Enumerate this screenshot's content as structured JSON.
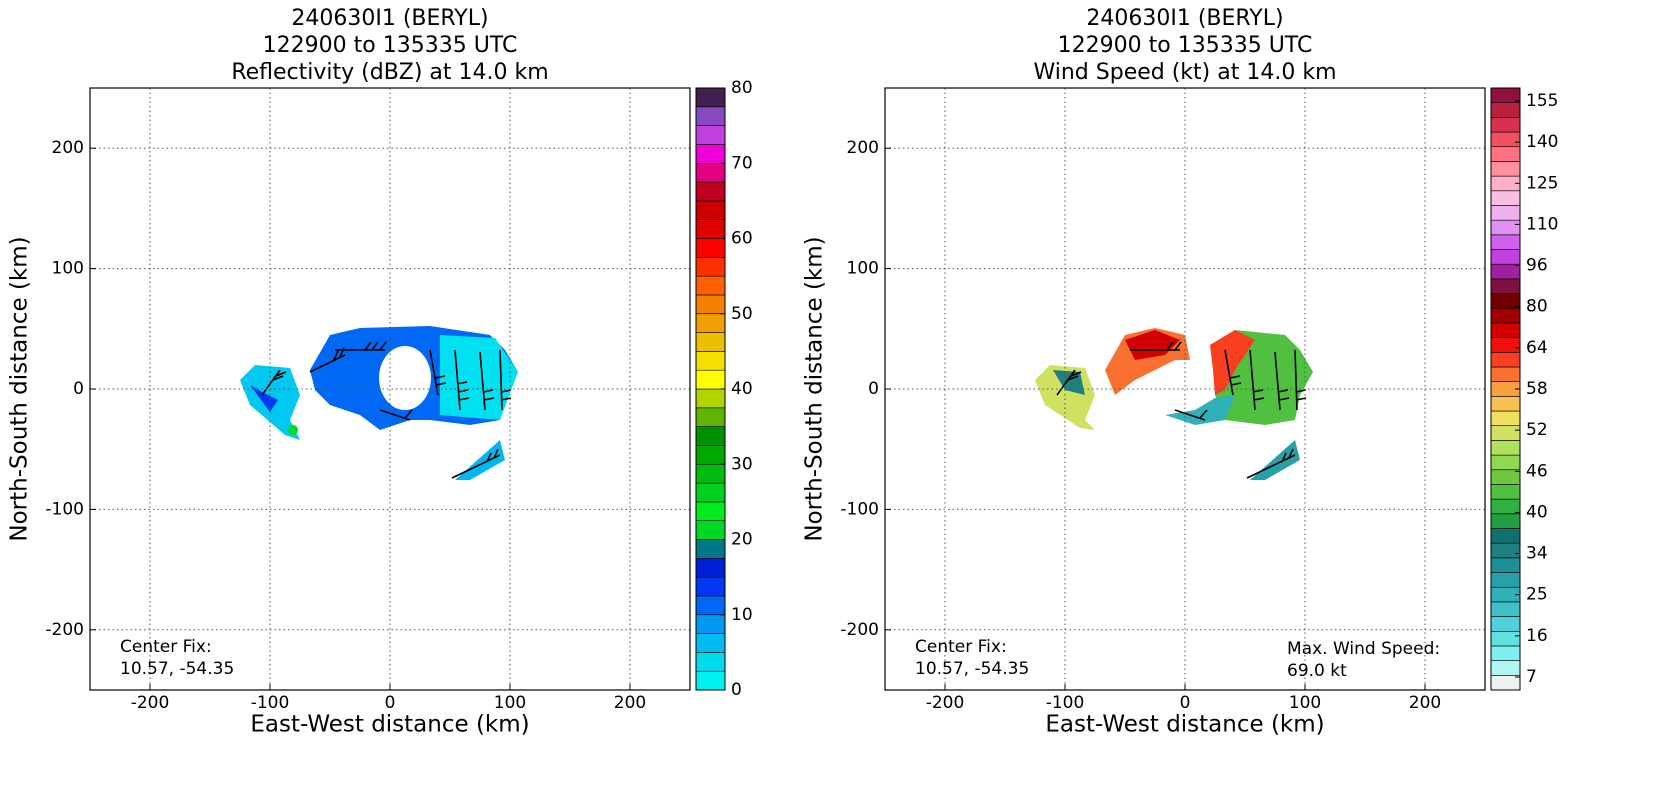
{
  "chart_data": [
    {
      "type": "map",
      "title": [
        "240630I1 (BERYL)",
        "122900 to 135335 UTC",
        "Reflectivity (dBZ) at 14.0 km"
      ],
      "xlabel": "East-West distance (km)",
      "ylabel": "North-South distance (km)",
      "xlim": [
        -250,
        250
      ],
      "ylim": [
        -250,
        250
      ],
      "xticks": [
        -200,
        -100,
        0,
        100,
        200
      ],
      "yticks": [
        -200,
        -100,
        0,
        100,
        200
      ],
      "grid": true,
      "center_fix": [
        "Center Fix:",
        "10.57, -54.35"
      ],
      "colorbar": {
        "lim": [
          0,
          80
        ],
        "ticks": [
          0,
          10,
          20,
          30,
          40,
          50,
          60,
          70,
          80
        ],
        "colors": [
          "#00f0f0",
          "#00dcec",
          "#00bcf0",
          "#0098f0",
          "#0068f4",
          "#0038f4",
          "#0020d8",
          "#007888",
          "#00d828",
          "#00ec20",
          "#00d020",
          "#00bc10",
          "#00a800",
          "#009000",
          "#60b400",
          "#b0d400",
          "#ffff00",
          "#f4e000",
          "#ecc000",
          "#f0a000",
          "#f48000",
          "#ff6000",
          "#ff3000",
          "#ff0000",
          "#e00000",
          "#cc0000",
          "#c00020",
          "#e00080",
          "#f000d8",
          "#c040e0",
          "#8848c0",
          "#402050"
        ]
      }
    },
    {
      "type": "map",
      "title": [
        "240630I1 (BERYL)",
        "122900 to 135335 UTC",
        "Wind Speed (kt) at 14.0 km"
      ],
      "xlabel": "East-West distance (km)",
      "ylabel": "North-South distance (km)",
      "xlim": [
        -250,
        250
      ],
      "ylim": [
        -250,
        250
      ],
      "xticks": [
        -200,
        -100,
        0,
        100,
        200
      ],
      "yticks": [
        -200,
        -100,
        0,
        100,
        200
      ],
      "grid": true,
      "center_fix": [
        "Center Fix:",
        "10.57, -54.35"
      ],
      "max_wind": [
        "Max. Wind Speed:",
        "69.0 kt"
      ],
      "colorbar": {
        "ticks": [
          7,
          16,
          25,
          34,
          40,
          46,
          52,
          58,
          64,
          80,
          96,
          110,
          125,
          140,
          155
        ],
        "colors": [
          "#f0f0f0",
          "#b0f4f4",
          "#80eeee",
          "#60e0e0",
          "#50d0d8",
          "#40c0c8",
          "#30b0b8",
          "#28a0a8",
          "#209098",
          "#208080",
          "#107070",
          "#20a040",
          "#30b040",
          "#50c040",
          "#70c840",
          "#90d850",
          "#b0e060",
          "#d0e060",
          "#f0e060",
          "#f8c050",
          "#f8a040",
          "#f87030",
          "#f84020",
          "#f01010",
          "#d00000",
          "#a00000",
          "#700000",
          "#801040",
          "#a020a0",
          "#c040e0",
          "#d060f0",
          "#e090f0",
          "#f0b0f0",
          "#f8c0e0",
          "#ffb0c8",
          "#ff90a0",
          "#ff7080",
          "#f05060",
          "#d83050",
          "#b82040",
          "#901040"
        ]
      }
    }
  ]
}
